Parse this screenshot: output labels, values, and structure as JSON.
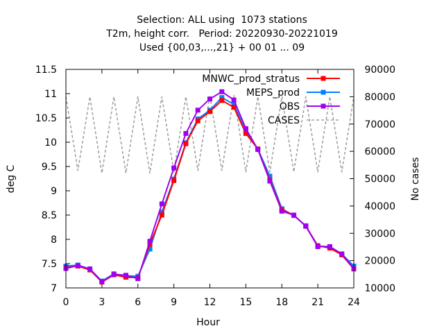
{
  "chart_data": {
    "type": "line",
    "title_lines": [
      "Selection: ALL using  1073 stations",
      "T2m, height corr.   Period: 20220930-20221019",
      "Used {00,03,...,21} + 00 01 ... 09"
    ],
    "xlabel": "Hour",
    "ylabel": "deg C",
    "y2label": "No cases",
    "xlim": [
      0,
      24
    ],
    "ylim": [
      7,
      11.5
    ],
    "y2lim": [
      10000,
      90000
    ],
    "xticks": [
      0,
      3,
      6,
      9,
      12,
      15,
      18,
      21,
      24
    ],
    "yticks": [
      "7",
      "7.5",
      "8",
      "8.5",
      "9",
      "9.5",
      "10",
      "10.5",
      "11",
      "11.5"
    ],
    "y2ticks": [
      "10000",
      "20000",
      "30000",
      "40000",
      "50000",
      "60000",
      "70000",
      "80000",
      "90000"
    ],
    "grid": false,
    "legend_position": "top-right",
    "x": [
      0,
      1,
      2,
      3,
      4,
      5,
      6,
      7,
      8,
      9,
      10,
      11,
      12,
      13,
      14,
      15,
      16,
      17,
      18,
      19,
      20,
      21,
      22,
      23,
      24
    ],
    "series": [
      {
        "name": "MNWC_prod_stratus",
        "color": "#ff0000",
        "axis": "y",
        "values": [
          7.42,
          7.45,
          7.37,
          7.12,
          7.27,
          7.22,
          7.21,
          7.9,
          8.5,
          9.21,
          9.97,
          10.44,
          10.63,
          10.86,
          10.72,
          10.18,
          9.86,
          9.22,
          8.61,
          8.5,
          8.27,
          7.87,
          7.82,
          7.68,
          7.39
        ]
      },
      {
        "name": "MEPS_prod",
        "color": "#0080ff",
        "axis": "y",
        "values": [
          7.45,
          7.47,
          7.39,
          7.14,
          7.29,
          7.25,
          7.24,
          7.8,
          8.56,
          9.24,
          9.99,
          10.48,
          10.66,
          10.92,
          10.78,
          10.22,
          9.86,
          9.3,
          8.63,
          8.49,
          8.28,
          7.86,
          7.85,
          7.7,
          7.45
        ]
      },
      {
        "name": "OBS",
        "color": "#a000f0",
        "axis": "y",
        "values": [
          7.4,
          7.46,
          7.39,
          7.13,
          7.28,
          7.26,
          7.19,
          7.96,
          8.73,
          9.47,
          10.18,
          10.66,
          10.89,
          11.04,
          10.87,
          10.28,
          9.85,
          9.2,
          8.58,
          8.5,
          8.27,
          7.85,
          7.85,
          7.7,
          7.4
        ]
      },
      {
        "name": "CASES",
        "color": "#a0a0a0",
        "axis": "y2",
        "style": "dashed",
        "values": [
          80000,
          53000,
          80000,
          52000,
          80000,
          52000,
          80000,
          52000,
          80000,
          52500,
          80000,
          53000,
          80500,
          53000,
          80500,
          52500,
          80000,
          52500,
          80000,
          52500,
          80000,
          52500,
          80000,
          52500,
          80000
        ]
      }
    ]
  }
}
